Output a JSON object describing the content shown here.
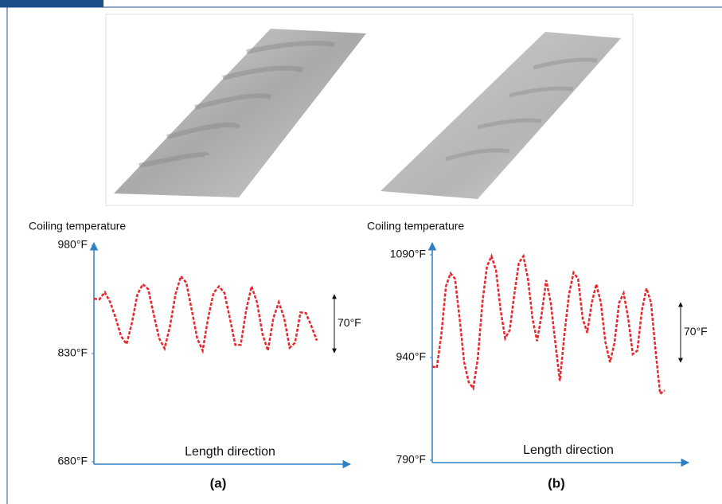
{
  "chart_data": [
    {
      "type": "line",
      "ylabel": "Coiling temperature",
      "xlabel": "Length direction",
      "caption": "(a)",
      "annotation": "70°F",
      "ylim": [
        680,
        980
      ],
      "yticks": [
        {
          "value": 680,
          "label": "680°F"
        },
        {
          "value": 830,
          "label": "830°F"
        },
        {
          "value": 980,
          "label": "980°F"
        }
      ],
      "categories": [
        null,
        null,
        null,
        null,
        null,
        null,
        null,
        null,
        null,
        null,
        null,
        null,
        null,
        null,
        null,
        null,
        null,
        null,
        null,
        null,
        null,
        null,
        null,
        null,
        null,
        null,
        null,
        null,
        null,
        null,
        null,
        null,
        null,
        null,
        null,
        null,
        null,
        null,
        null,
        null,
        null,
        null
      ],
      "series": [
        {
          "color": "#e8262b",
          "values": [
            906,
            905,
            915,
            901,
            879,
            854,
            843,
            873,
            912,
            926,
            919,
            884,
            851,
            837,
            868,
            912,
            937,
            928,
            890,
            851,
            834,
            879,
            914,
            923,
            914,
            879,
            842,
            842,
            890,
            923,
            901,
            857,
            834,
            879,
            901,
            879,
            838,
            845,
            887,
            886,
            868,
            848
          ]
        }
      ]
    },
    {
      "type": "line",
      "ylabel": "Coiling temperature",
      "xlabel": "Length direction",
      "caption": "(b)",
      "annotation": "70°F",
      "ylim": [
        790,
        1090
      ],
      "yticks": [
        {
          "value": 790,
          "label": "790°F"
        },
        {
          "value": 940,
          "label": "940°F"
        },
        {
          "value": 1090,
          "label": "1090°F"
        }
      ],
      "categories": [
        null,
        null,
        null,
        null,
        null,
        null,
        null,
        null,
        null,
        null,
        null,
        null,
        null,
        null,
        null,
        null,
        null,
        null,
        null,
        null,
        null,
        null,
        null,
        null,
        null,
        null,
        null,
        null,
        null,
        null,
        null,
        null,
        null,
        null,
        null,
        null,
        null,
        null,
        null,
        null,
        null,
        null,
        null,
        null,
        null,
        null,
        null,
        null,
        null,
        null,
        null,
        null
      ],
      "series": [
        {
          "color": "#e8262b",
          "values": [
            927,
            925,
            974,
            1044,
            1063,
            1055,
            997,
            933,
            904,
            895,
            939,
            1020,
            1073,
            1088,
            1067,
            1009,
            968,
            980,
            1032,
            1078,
            1088,
            1055,
            997,
            964,
            1003,
            1053,
            1020,
            962,
            906,
            974,
            1032,
            1064,
            1055,
            997,
            976,
            1020,
            1047,
            1020,
            962,
            933,
            962,
            1020,
            1034,
            997,
            945,
            950,
            1009,
            1041,
            1020,
            950,
            887,
            892
          ]
        }
      ]
    }
  ]
}
